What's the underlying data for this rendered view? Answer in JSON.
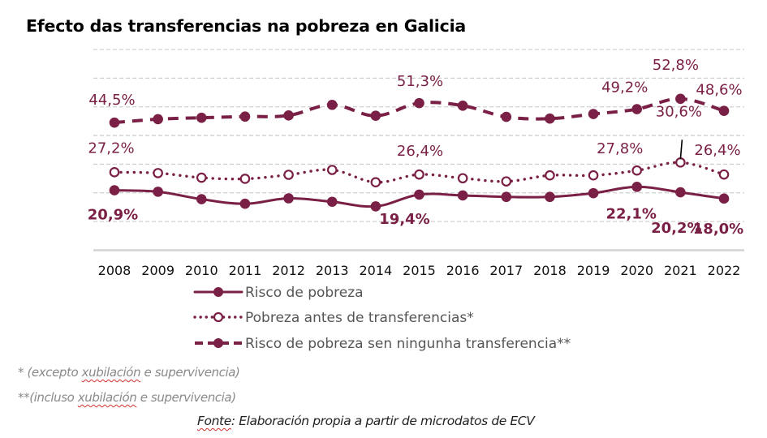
{
  "chart_data": {
    "type": "line",
    "title": "Efecto das transferencias na pobreza en Galicia",
    "xlabel": "",
    "ylabel": "",
    "x": [
      "2008",
      "2009",
      "2010",
      "2011",
      "2012",
      "2013",
      "2014",
      "2015",
      "2016",
      "2017",
      "2018",
      "2019",
      "2020",
      "2021",
      "2022"
    ],
    "ylim": [
      0,
      70
    ],
    "ygrid_step": 10,
    "grid": true,
    "y_tick_labels_visible": false,
    "legend_position": "bottom",
    "color": "#7a1f45",
    "series": [
      {
        "name": "Risco de pobreza",
        "style": "solid",
        "marker": "filled-circle",
        "values": [
          20.9,
          20.4,
          17.8,
          16.2,
          18.1,
          16.9,
          15.3,
          19.4,
          19.1,
          18.6,
          18.6,
          19.9,
          22.1,
          20.2,
          18.0
        ]
      },
      {
        "name": "Pobreza antes de transferencias*",
        "style": "dotted",
        "marker": "open-circle",
        "values": [
          27.2,
          26.9,
          25.3,
          24.9,
          26.3,
          28.0,
          23.7,
          26.4,
          25.1,
          24.0,
          26.1,
          26.1,
          27.8,
          30.6,
          26.4
        ]
      },
      {
        "name": "Risco de pobreza sen ningunha transferencia**",
        "style": "dashed",
        "marker": "filled-circle",
        "values": [
          44.5,
          45.7,
          46.2,
          46.6,
          47.0,
          50.7,
          46.9,
          51.3,
          50.4,
          46.5,
          45.9,
          47.5,
          49.2,
          52.8,
          48.6
        ]
      }
    ],
    "annotations": [
      {
        "series": 2,
        "year": "2008",
        "text": "44,5%",
        "bold": false
      },
      {
        "series": 2,
        "year": "2015",
        "text": "51,3%",
        "bold": false
      },
      {
        "series": 2,
        "year": "2020",
        "text": "49,2%",
        "bold": false
      },
      {
        "series": 2,
        "year": "2021",
        "text": "52,8%",
        "bold": false
      },
      {
        "series": 2,
        "year": "2022",
        "text": "48,6%",
        "bold": false
      },
      {
        "series": 1,
        "year": "2008",
        "text": "27,2%",
        "bold": false
      },
      {
        "series": 1,
        "year": "2015",
        "text": "26,4%",
        "bold": false
      },
      {
        "series": 1,
        "year": "2020",
        "text": "27,8%",
        "bold": false
      },
      {
        "series": 1,
        "year": "2021",
        "text": "30,6%",
        "bold": false,
        "leader_line": true
      },
      {
        "series": 1,
        "year": "2022",
        "text": "26,4%",
        "bold": false
      },
      {
        "series": 0,
        "year": "2008",
        "text": "20,9%",
        "bold": true
      },
      {
        "series": 0,
        "year": "2015",
        "text": "19,4%",
        "bold": true
      },
      {
        "series": 0,
        "year": "2020",
        "text": "22,1%",
        "bold": true
      },
      {
        "series": 0,
        "year": "2021",
        "text": "20,2%",
        "bold": true
      },
      {
        "series": 0,
        "year": "2022",
        "text": "18,0%",
        "bold": true
      }
    ]
  },
  "footnotes": {
    "note1_prefix": "* (excepto ",
    "note1_word": "xubilación",
    "note1_suffix": " e supervivencia)",
    "note2_prefix": "**(incluso ",
    "note2_word": "xubilación",
    "note2_suffix": " e supervivencia)",
    "source_word": "Fonte",
    "source_suffix": ": Elaboración propia a partir de microdatos de ECV"
  }
}
